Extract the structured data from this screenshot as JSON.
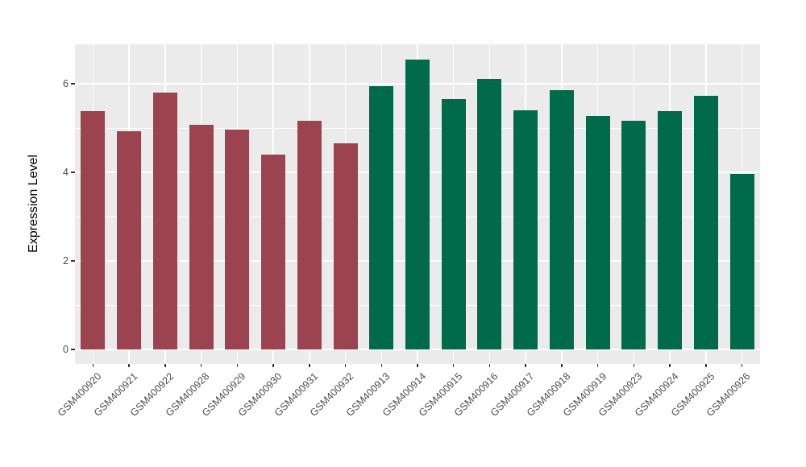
{
  "chart_data": {
    "type": "bar",
    "title": "",
    "ylabel": "Expression Level",
    "xlabel": "",
    "categories": [
      "GSM400920",
      "GSM400921",
      "GSM400922",
      "GSM400928",
      "GSM400929",
      "GSM400930",
      "GSM400931",
      "GSM400932",
      "GSM400913",
      "GSM400914",
      "GSM400915",
      "GSM400916",
      "GSM400917",
      "GSM400918",
      "GSM400919",
      "GSM400923",
      "GSM400924",
      "GSM400925",
      "GSM400926"
    ],
    "values": [
      5.39,
      4.93,
      5.8,
      5.07,
      4.96,
      4.4,
      5.16,
      4.65,
      5.95,
      6.55,
      5.65,
      6.11,
      5.4,
      5.85,
      5.27,
      5.17,
      5.38,
      5.73,
      3.96
    ],
    "groups": [
      "group1",
      "group1",
      "group1",
      "group1",
      "group1",
      "group1",
      "group1",
      "group1",
      "group2",
      "group2",
      "group2",
      "group2",
      "group2",
      "group2",
      "group2",
      "group2",
      "group2",
      "group2",
      "group2"
    ],
    "group_colors": {
      "group1": "#9B4450",
      "group2": "#016A49"
    },
    "yticks": [
      0,
      2,
      4,
      6
    ],
    "minor_yticks": [
      1,
      3,
      5
    ],
    "ylim": [
      0,
      6.9
    ],
    "legend_position": "none",
    "grid": "on",
    "panel_background": "#EBEBEB",
    "gridline_color": "#FFFFFF",
    "axis_text_color": "#4D4D4D",
    "tick_mark_color": "#333333"
  }
}
